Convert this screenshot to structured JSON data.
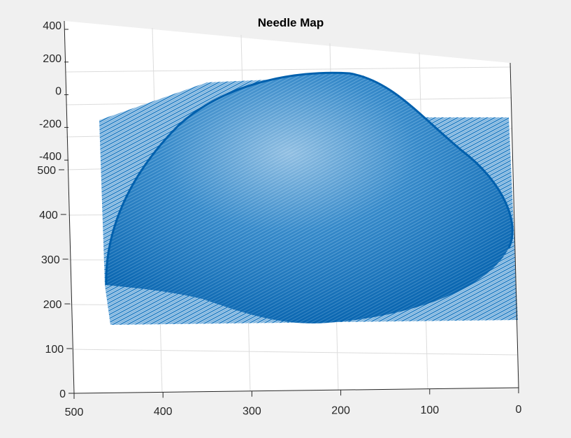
{
  "figure_title": "Needle Map",
  "colors": {
    "surface": "#0072bd",
    "background": "#f0f0f0",
    "axes": "#262626",
    "grid": "#dcdcdc"
  },
  "chart_data": {
    "type": "surface-needle-3d",
    "title": "Needle Map",
    "xlabel": "",
    "ylabel": "",
    "zlabel": "",
    "x_ticks": [
      "500",
      "400",
      "300",
      "200",
      "100",
      "0"
    ],
    "y_ticks": [
      "0",
      "100",
      "200",
      "300",
      "400",
      "500"
    ],
    "z_ticks": [
      "400",
      "200",
      "0",
      "-200",
      "-400"
    ],
    "xlim": [
      0,
      500
    ],
    "ylim": [
      0,
      500
    ],
    "zlim": [
      -400,
      400
    ],
    "grid": true,
    "series": [
      {
        "kind": "background plane",
        "x_range": [
          0,
          470
        ],
        "y_range": [
          150,
          470
        ],
        "z": 0
      },
      {
        "kind": "dome (hemispherical bump)",
        "center_x": 230,
        "center_y": 300,
        "peak_height_z": 300
      }
    ]
  }
}
